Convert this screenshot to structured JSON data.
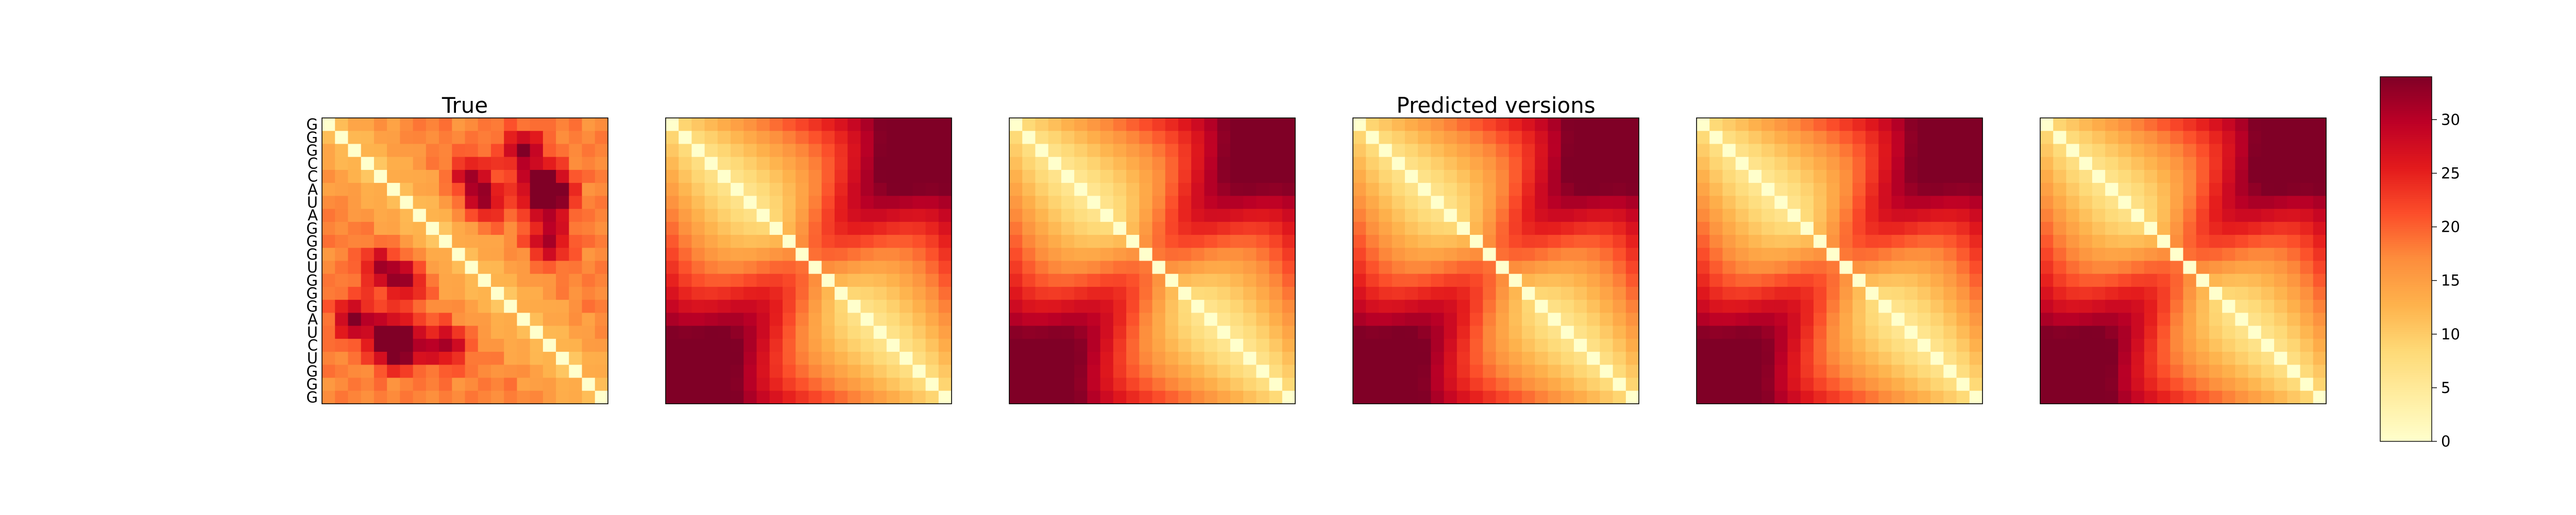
{
  "chart_data": {
    "type": "heatmap",
    "panel_titles": [
      "True",
      "",
      "",
      "Predicted versions",
      "",
      ""
    ],
    "sequence": [
      "G",
      "G",
      "G",
      "C",
      "C",
      "A",
      "U",
      "A",
      "G",
      "G",
      "G",
      "U",
      "G",
      "G",
      "G",
      "A",
      "U",
      "C",
      "U",
      "G",
      "G",
      "G"
    ],
    "colorbar": {
      "min": 0,
      "max": 34,
      "ticks": [
        0,
        5,
        10,
        15,
        20,
        25,
        30
      ],
      "colormap": "YlOrRd",
      "colors": [
        "#ffffcc",
        "#ffeda0",
        "#fed976",
        "#feb24c",
        "#fd8d3c",
        "#fc4e2a",
        "#e31a1c",
        "#bd0026",
        "#800026"
      ]
    },
    "true_hotspots": [
      {
        "row": 5,
        "col": 17,
        "value": 34
      },
      {
        "row": 6,
        "col": 17,
        "value": 33
      },
      {
        "row": 17,
        "col": 5,
        "value": 34
      },
      {
        "row": 16,
        "col": 5,
        "value": 32
      },
      {
        "row": 6,
        "col": 12,
        "value": 27
      },
      {
        "row": 12,
        "col": 6,
        "value": 27
      },
      {
        "row": 2,
        "col": 15,
        "value": 30
      },
      {
        "row": 15,
        "col": 2,
        "value": 30
      },
      {
        "row": 9,
        "col": 17,
        "value": 28
      },
      {
        "row": 17,
        "col": 9,
        "value": 28
      },
      {
        "row": 11,
        "col": 4,
        "value": 26
      },
      {
        "row": 4,
        "col": 11,
        "value": 26
      }
    ],
    "predicted_max_distance": 34
  }
}
